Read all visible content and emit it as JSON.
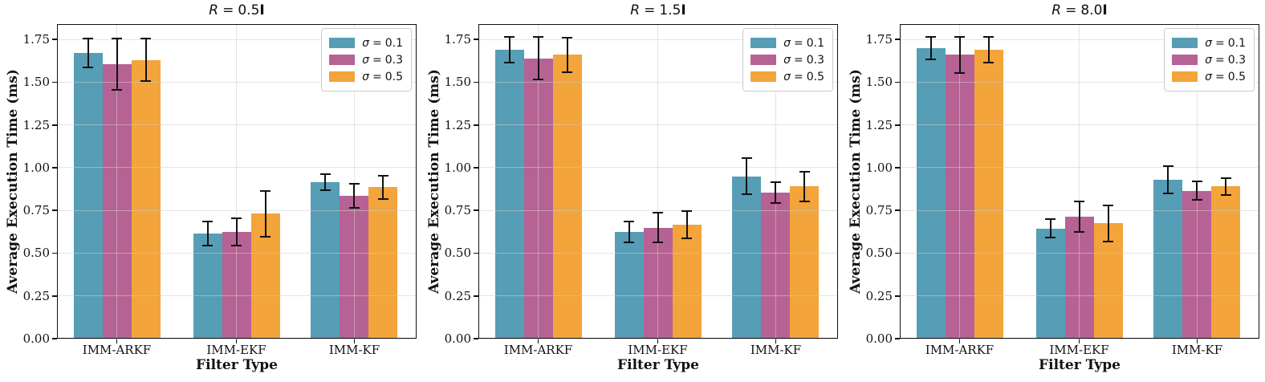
{
  "styles": {
    "background": "#ffffff",
    "grid_color": "#e6e6e6",
    "spine_color": "#111111",
    "errorbar_color": "#111111",
    "text_color": "#111111"
  },
  "chart_data": [
    {
      "type": "bar",
      "title": {
        "text": "R = 0.5I",
        "var": "R",
        "relation": "=",
        "coef": "0.5",
        "mat": "I"
      },
      "xlabel": "Filter Type",
      "ylabel": "Average Execution Time (ms)",
      "categories": [
        "IMM-ARKF",
        "IMM-EKF",
        "IMM-KF"
      ],
      "ytick_labels": [
        "0.00",
        "0.25",
        "0.50",
        "0.75",
        "1.00",
        "1.25",
        "1.50",
        "1.75"
      ],
      "ytick_values": [
        0,
        0.25,
        0.5,
        0.75,
        1.0,
        1.25,
        1.5,
        1.75
      ],
      "ylim": [
        0,
        1.84
      ],
      "grid": true,
      "legend_position": "upper right",
      "legend": [
        {
          "symbol": "σ",
          "relation": "=",
          "value": "0.1",
          "color": "#569db6"
        },
        {
          "symbol": "σ",
          "relation": "=",
          "value": "0.3",
          "color": "#b76294"
        },
        {
          "symbol": "σ",
          "relation": "=",
          "value": "0.5",
          "color": "#f3a43b"
        }
      ],
      "series": [
        {
          "name": "σ = 0.1",
          "color": "#569db6",
          "values": [
            1.67,
            0.615,
            0.915
          ],
          "yerr": [
            0.085,
            0.07,
            0.045
          ]
        },
        {
          "name": "σ = 0.3",
          "color": "#b76294",
          "values": [
            1.605,
            0.625,
            0.835
          ],
          "yerr": [
            0.15,
            0.08,
            0.07
          ]
        },
        {
          "name": "σ = 0.5",
          "color": "#f3a43b",
          "values": [
            1.63,
            0.73,
            0.885
          ],
          "yerr": [
            0.125,
            0.135,
            0.07
          ]
        }
      ]
    },
    {
      "type": "bar",
      "title": {
        "text": "R = 1.5I",
        "var": "R",
        "relation": "=",
        "coef": "1.5",
        "mat": "I"
      },
      "xlabel": "Filter Type",
      "ylabel": "Average Execution Time (ms)",
      "categories": [
        "IMM-ARKF",
        "IMM-EKF",
        "IMM-KF"
      ],
      "ytick_labels": [
        "0.00",
        "0.25",
        "0.50",
        "0.75",
        "1.00",
        "1.25",
        "1.50",
        "1.75"
      ],
      "ytick_values": [
        0,
        0.25,
        0.5,
        0.75,
        1.0,
        1.25,
        1.5,
        1.75
      ],
      "ylim": [
        0,
        1.84
      ],
      "grid": true,
      "legend_position": "upper right",
      "legend": [
        {
          "symbol": "σ",
          "relation": "=",
          "value": "0.1",
          "color": "#569db6"
        },
        {
          "symbol": "σ",
          "relation": "=",
          "value": "0.3",
          "color": "#b76294"
        },
        {
          "symbol": "σ",
          "relation": "=",
          "value": "0.5",
          "color": "#f3a43b"
        }
      ],
      "series": [
        {
          "name": "σ = 0.1",
          "color": "#569db6",
          "values": [
            1.69,
            0.625,
            0.95
          ],
          "yerr": [
            0.075,
            0.06,
            0.105
          ]
        },
        {
          "name": "σ = 0.3",
          "color": "#b76294",
          "values": [
            1.64,
            0.65,
            0.855
          ],
          "yerr": [
            0.125,
            0.085,
            0.06
          ]
        },
        {
          "name": "σ = 0.5",
          "color": "#f3a43b",
          "values": [
            1.66,
            0.665,
            0.89
          ],
          "yerr": [
            0.1,
            0.08,
            0.085
          ]
        }
      ]
    },
    {
      "type": "bar",
      "title": {
        "text": "R = 8.0I",
        "var": "R",
        "relation": "=",
        "coef": "8.0",
        "mat": "I"
      },
      "xlabel": "Filter Type",
      "ylabel": "Average Execution Time (ms)",
      "categories": [
        "IMM-ARKF",
        "IMM-EKF",
        "IMM-KF"
      ],
      "ytick_labels": [
        "0.00",
        "0.25",
        "0.50",
        "0.75",
        "1.00",
        "1.25",
        "1.50",
        "1.75"
      ],
      "ytick_values": [
        0,
        0.25,
        0.5,
        0.75,
        1.0,
        1.25,
        1.5,
        1.75
      ],
      "ylim": [
        0,
        1.84
      ],
      "grid": true,
      "legend_position": "upper right",
      "legend": [
        {
          "symbol": "σ",
          "relation": "=",
          "value": "0.1",
          "color": "#569db6"
        },
        {
          "symbol": "σ",
          "relation": "=",
          "value": "0.3",
          "color": "#b76294"
        },
        {
          "symbol": "σ",
          "relation": "=",
          "value": "0.5",
          "color": "#f3a43b"
        }
      ],
      "series": [
        {
          "name": "σ = 0.1",
          "color": "#569db6",
          "values": [
            1.7,
            0.645,
            0.93
          ],
          "yerr": [
            0.065,
            0.055,
            0.08
          ]
        },
        {
          "name": "σ = 0.3",
          "color": "#b76294",
          "values": [
            1.66,
            0.715,
            0.865
          ],
          "yerr": [
            0.105,
            0.09,
            0.055
          ]
        },
        {
          "name": "σ = 0.5",
          "color": "#f3a43b",
          "values": [
            1.69,
            0.675,
            0.89
          ],
          "yerr": [
            0.075,
            0.105,
            0.05
          ]
        }
      ]
    }
  ]
}
